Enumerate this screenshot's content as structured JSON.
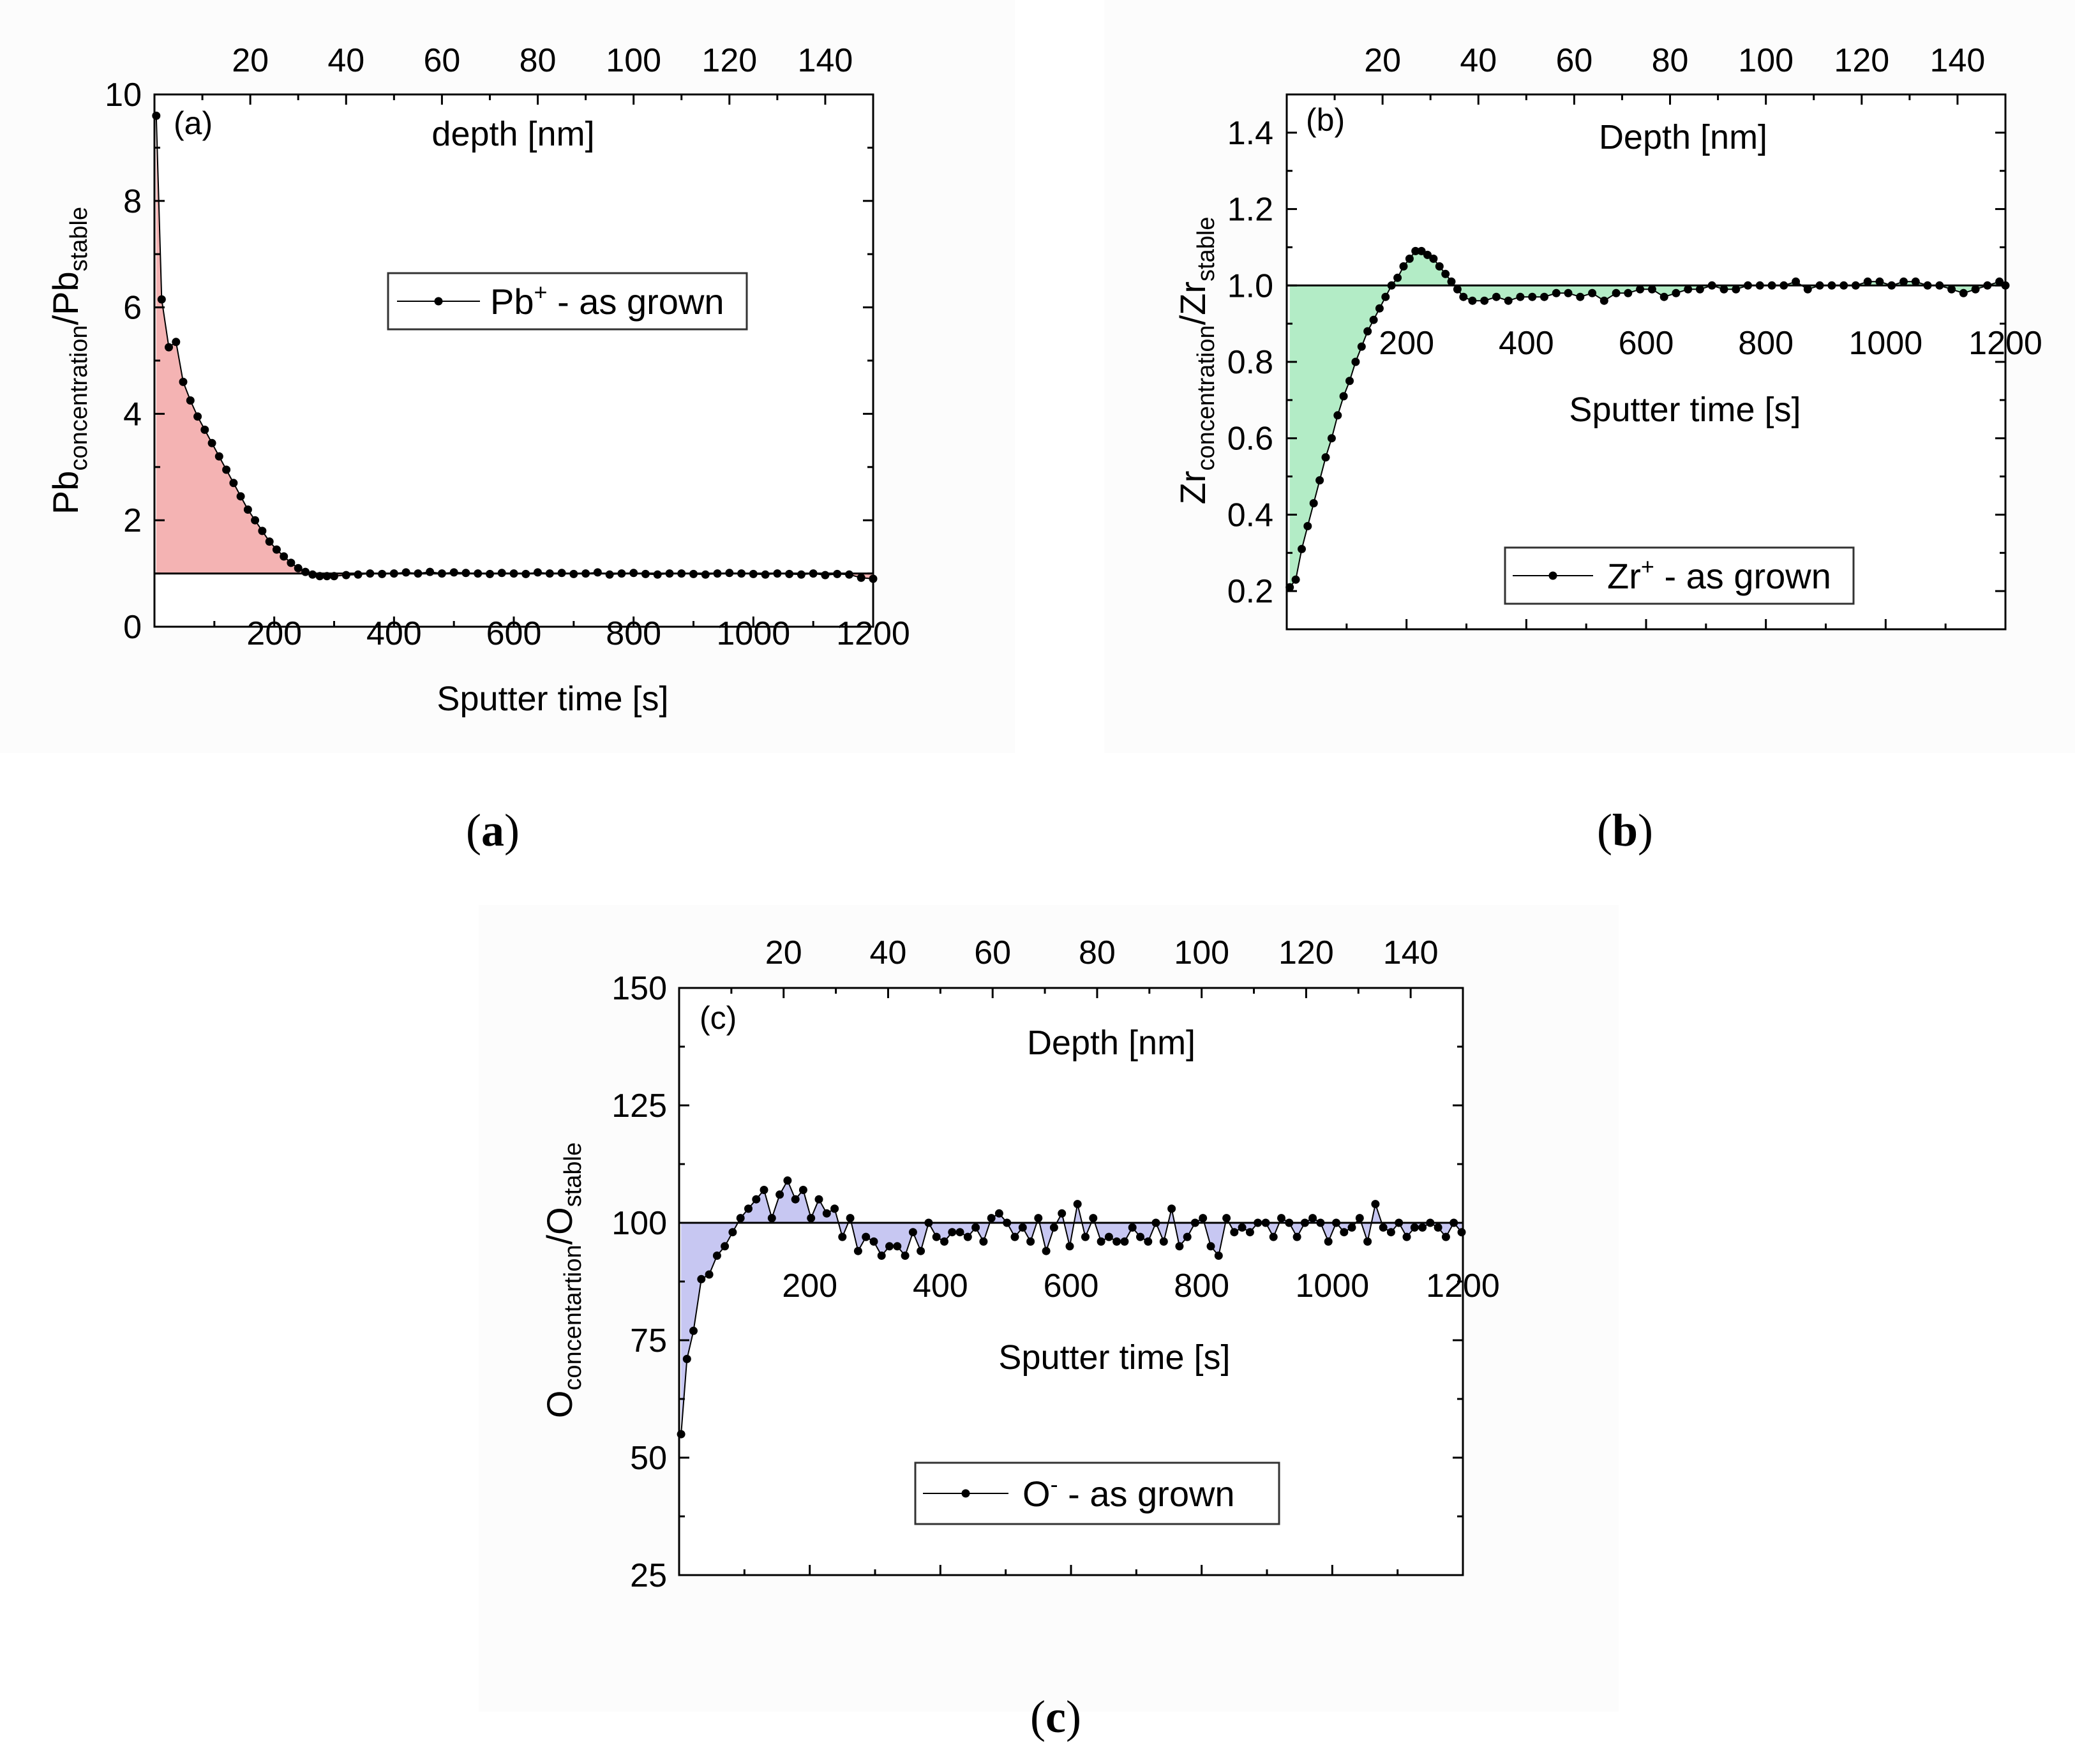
{
  "captions": {
    "a": {
      "open": "(",
      "letter": "a",
      "close": ")"
    },
    "b": {
      "open": "(",
      "letter": "b",
      "close": ")"
    },
    "c": {
      "open": "(",
      "letter": "c",
      "close": ")"
    }
  },
  "chart_data": [
    {
      "type": "line",
      "id": "a",
      "panel_tag": "(a)",
      "top_xlabel": "depth [nm]",
      "xlabel": "Sputter time [s]",
      "ylabel": {
        "main1": "Pb",
        "sub1": "concentration",
        "main2": "/Pb",
        "sub2": "stable"
      },
      "legend": {
        "main": "Pb",
        "sup": "+",
        "rest": " - as grown"
      },
      "legend_position": "upper-middle",
      "xlim": [
        0,
        1200
      ],
      "ylim": [
        0,
        10
      ],
      "x_ticks": [
        200,
        400,
        600,
        800,
        1000,
        1200
      ],
      "x_tick_labels": [
        "200",
        "400",
        "600",
        "800",
        "1000",
        "1200"
      ],
      "y_ticks": [
        0,
        2,
        4,
        6,
        8,
        10
      ],
      "y_tick_labels": [
        "0",
        "2",
        "4",
        "6",
        "8",
        "10"
      ],
      "top_axis": {
        "lim": [
          0,
          150
        ],
        "ticks": [
          20,
          40,
          60,
          80,
          100,
          120,
          140
        ],
        "labels": [
          "20",
          "40",
          "60",
          "80",
          "100",
          "120",
          "140"
        ]
      },
      "baseline": 1.0,
      "fill_color": "#f4b3b3",
      "x": [
        3,
        12,
        24,
        36,
        48,
        60,
        72,
        84,
        96,
        108,
        120,
        132,
        144,
        156,
        168,
        180,
        192,
        204,
        216,
        228,
        240,
        252,
        264,
        276,
        288,
        300,
        320,
        340,
        360,
        380,
        400,
        420,
        440,
        460,
        480,
        500,
        520,
        540,
        560,
        580,
        600,
        620,
        640,
        660,
        680,
        700,
        720,
        740,
        760,
        780,
        800,
        820,
        840,
        860,
        880,
        900,
        920,
        940,
        960,
        980,
        1000,
        1020,
        1040,
        1060,
        1080,
        1100,
        1120,
        1140,
        1160,
        1180,
        1200
      ],
      "y": [
        9.6,
        6.15,
        5.25,
        5.35,
        4.6,
        4.25,
        3.95,
        3.7,
        3.45,
        3.2,
        2.95,
        2.7,
        2.45,
        2.2,
        2.0,
        1.8,
        1.6,
        1.45,
        1.32,
        1.2,
        1.1,
        1.03,
        0.98,
        0.95,
        0.95,
        0.95,
        0.97,
        0.98,
        1.0,
        0.99,
        1.0,
        1.02,
        1.0,
        1.03,
        1.0,
        1.02,
        1.01,
        1.0,
        0.99,
        1.01,
        1.0,
        0.99,
        1.02,
        1.0,
        1.01,
        0.99,
        1.0,
        1.02,
        0.98,
        1.0,
        1.01,
        0.99,
        0.98,
        1.0,
        1.0,
        0.99,
        0.98,
        1.0,
        1.01,
        1.0,
        0.99,
        0.98,
        1.0,
        0.99,
        0.98,
        1.0,
        0.97,
        0.99,
        0.98,
        0.92,
        0.9
      ]
    },
    {
      "type": "line",
      "id": "b",
      "panel_tag": "(b)",
      "top_xlabel": "Depth [nm]",
      "xlabel": "Sputter time [s]",
      "ylabel": {
        "main1": "Zr",
        "sub1": "concentration",
        "main2": "/Zr",
        "sub2": "stable"
      },
      "legend": {
        "main": "Zr",
        "sup": "+",
        "rest": " - as grown"
      },
      "legend_position": "bottom-right",
      "xlim": [
        0,
        1200
      ],
      "ylim": [
        0.1,
        1.5
      ],
      "x_ticks": [
        200,
        400,
        600,
        800,
        1000,
        1200
      ],
      "x_tick_labels": [
        "200",
        "400",
        "600",
        "800",
        "1000",
        "1200"
      ],
      "y_ticks": [
        0.2,
        0.4,
        0.6,
        0.8,
        1.0,
        1.2,
        1.4
      ],
      "y_tick_labels": [
        "0.2",
        "0.4",
        "0.6",
        "0.8",
        "1.0",
        "1.2",
        "1.4"
      ],
      "top_axis": {
        "lim": [
          0,
          150
        ],
        "ticks": [
          20,
          40,
          60,
          80,
          100,
          120,
          140
        ],
        "labels": [
          "20",
          "40",
          "60",
          "80",
          "100",
          "120",
          "140"
        ]
      },
      "baseline": 1.0,
      "fill_color": "#b3ecc6",
      "x": [
        5,
        15,
        25,
        35,
        45,
        55,
        65,
        75,
        85,
        95,
        105,
        115,
        125,
        135,
        145,
        155,
        165,
        175,
        185,
        195,
        205,
        215,
        225,
        235,
        245,
        255,
        265,
        275,
        285,
        295,
        310,
        330,
        350,
        370,
        390,
        410,
        430,
        450,
        470,
        490,
        510,
        530,
        550,
        570,
        590,
        610,
        630,
        650,
        670,
        690,
        710,
        730,
        750,
        770,
        790,
        810,
        830,
        850,
        870,
        890,
        910,
        930,
        950,
        970,
        990,
        1010,
        1030,
        1050,
        1070,
        1090,
        1110,
        1130,
        1150,
        1170,
        1190,
        1200
      ],
      "y": [
        0.21,
        0.23,
        0.31,
        0.37,
        0.43,
        0.49,
        0.55,
        0.6,
        0.66,
        0.71,
        0.75,
        0.8,
        0.84,
        0.88,
        0.91,
        0.94,
        0.97,
        1.0,
        1.02,
        1.05,
        1.07,
        1.09,
        1.09,
        1.08,
        1.07,
        1.05,
        1.03,
        1.01,
        0.99,
        0.97,
        0.96,
        0.96,
        0.97,
        0.96,
        0.97,
        0.97,
        0.97,
        0.98,
        0.98,
        0.97,
        0.98,
        0.96,
        0.98,
        0.98,
        0.99,
        0.99,
        0.97,
        0.98,
        0.99,
        0.99,
        1.0,
        0.99,
        0.99,
        1.0,
        1.0,
        1.0,
        1.0,
        1.01,
        0.99,
        1.0,
        1.0,
        1.0,
        1.0,
        1.01,
        1.01,
        1.0,
        1.01,
        1.01,
        1.0,
        1.0,
        0.99,
        0.98,
        0.99,
        1.0,
        1.01,
        1.0
      ]
    },
    {
      "type": "line",
      "id": "c",
      "panel_tag": "(c)",
      "top_xlabel": "Depth [nm]",
      "xlabel": "Sputter time [s]",
      "ylabel": {
        "main1": "O",
        "sub1": "concentartion",
        "main2": "/O",
        "sub2": "stable"
      },
      "legend": {
        "main": "O",
        "sup": "-",
        "rest": " - as grown"
      },
      "legend_position": "bottom-right",
      "xlim": [
        0,
        1200
      ],
      "ylim": [
        25,
        150
      ],
      "x_ticks": [
        200,
        400,
        600,
        800,
        1000,
        1200
      ],
      "x_tick_labels": [
        "200",
        "400",
        "600",
        "800",
        "1000",
        "1200"
      ],
      "y_ticks": [
        25,
        50,
        75,
        100,
        125,
        150
      ],
      "y_tick_labels": [
        "25",
        "50",
        "75",
        "100",
        "125",
        "150"
      ],
      "top_axis": {
        "lim": [
          0,
          150
        ],
        "ticks": [
          20,
          40,
          60,
          80,
          100,
          120,
          140
        ],
        "labels": [
          "20",
          "40",
          "60",
          "80",
          "100",
          "120",
          "140"
        ]
      },
      "baseline": 100,
      "fill_color": "#c7c7f2",
      "x": [
        3,
        12,
        22,
        34,
        46,
        58,
        70,
        82,
        94,
        106,
        118,
        130,
        142,
        154,
        166,
        178,
        190,
        202,
        214,
        226,
        238,
        250,
        262,
        274,
        286,
        298,
        310,
        322,
        334,
        346,
        358,
        370,
        382,
        394,
        406,
        418,
        430,
        442,
        454,
        466,
        478,
        490,
        502,
        514,
        526,
        538,
        550,
        562,
        574,
        586,
        598,
        610,
        622,
        634,
        646,
        658,
        670,
        682,
        694,
        706,
        718,
        730,
        742,
        754,
        766,
        778,
        790,
        802,
        814,
        826,
        838,
        850,
        862,
        874,
        886,
        898,
        910,
        922,
        934,
        946,
        958,
        970,
        982,
        994,
        1006,
        1018,
        1030,
        1042,
        1054,
        1066,
        1078,
        1090,
        1102,
        1114,
        1126,
        1138,
        1150,
        1162,
        1174,
        1186,
        1198
      ],
      "y": [
        55,
        71,
        77,
        88,
        89,
        93,
        95,
        98,
        101,
        103,
        105,
        107,
        101,
        106,
        109,
        105,
        107,
        101,
        105,
        102,
        103,
        97,
        101,
        94,
        97,
        96,
        93,
        95,
        95,
        93,
        98,
        94,
        100,
        97,
        96,
        98,
        98,
        97,
        99,
        96,
        101,
        102,
        100,
        97,
        99,
        96,
        101,
        94,
        99,
        102,
        95,
        104,
        97,
        101,
        96,
        97,
        96,
        96,
        99,
        97,
        96,
        100,
        96,
        103,
        95,
        97,
        100,
        101,
        95,
        93,
        101,
        98,
        99,
        98,
        100,
        100,
        97,
        101,
        100,
        97,
        100,
        101,
        100,
        96,
        100,
        98,
        99,
        101,
        96,
        104,
        99,
        98,
        100,
        97,
        99,
        99,
        100,
        99,
        97,
        100,
        98
      ]
    }
  ]
}
